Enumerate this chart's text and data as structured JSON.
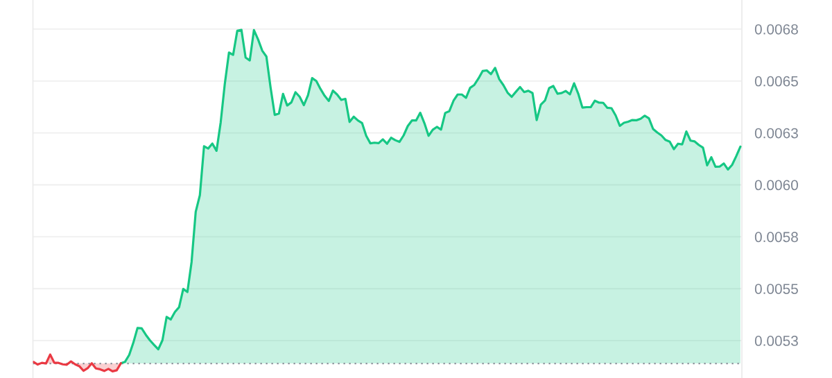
{
  "chart_data": {
    "type": "line",
    "categories": [
      null,
      null,
      null,
      null,
      null,
      null,
      null,
      null,
      null,
      null,
      null,
      null,
      null,
      null,
      null,
      null,
      null,
      null,
      null,
      null,
      null,
      null,
      null,
      null,
      null,
      null,
      null,
      null,
      null,
      null,
      null,
      null,
      null,
      null,
      null,
      null,
      null,
      null,
      null,
      null,
      null,
      null,
      null,
      null,
      null,
      null,
      null,
      null,
      null,
      null,
      null,
      null,
      null,
      null,
      null,
      null,
      null,
      null,
      null,
      null,
      null,
      null,
      null,
      null,
      null,
      null,
      null,
      null,
      null,
      null,
      null,
      null,
      null,
      null,
      null,
      null,
      null,
      null,
      null,
      null,
      null,
      null,
      null,
      null,
      null,
      null,
      null,
      null,
      null,
      null,
      null,
      null,
      null,
      null,
      null,
      null,
      null,
      null,
      null,
      null,
      null,
      null,
      null,
      null,
      null,
      null,
      null,
      null,
      null,
      null,
      null,
      null,
      null,
      null,
      null,
      null,
      null,
      null,
      null,
      null,
      null,
      null,
      null,
      null,
      null,
      null,
      null,
      null,
      null,
      null,
      null,
      null,
      null,
      null,
      null,
      null,
      null,
      null,
      null,
      null,
      null,
      null,
      null,
      null,
      null,
      null,
      null,
      null,
      null,
      null,
      null,
      null,
      null,
      null,
      null,
      null,
      null,
      null,
      null,
      null,
      null,
      null,
      null,
      null,
      null,
      null,
      null,
      null,
      null,
      null,
      null
    ],
    "series": [
      {
        "color": "#16c784",
        "values": [
          null,
          null,
          null,
          null,
          null,
          null,
          null,
          null,
          null,
          null,
          null,
          null,
          null,
          null,
          null,
          null,
          null,
          null,
          null,
          null,
          null,
          0.005141,
          0.005148,
          0.005181,
          0.00524,
          0.005311,
          0.005309,
          0.005278,
          0.005251,
          0.005229,
          0.005208,
          0.005252,
          0.005364,
          0.005352,
          0.005388,
          0.005411,
          0.005499,
          0.005484,
          0.005628,
          0.00587,
          0.00595,
          0.006186,
          0.006175,
          0.006199,
          0.006164,
          0.0063,
          0.006487,
          0.006637,
          0.006626,
          0.006742,
          0.006746,
          0.006613,
          0.006599,
          0.006745,
          0.0067,
          0.006646,
          0.006618,
          0.006469,
          0.006337,
          0.006343,
          0.006438,
          0.006382,
          0.006397,
          0.006446,
          0.006424,
          0.006384,
          0.006431,
          0.006514,
          0.0065,
          0.006462,
          0.006429,
          0.006404,
          0.006454,
          0.006435,
          0.006409,
          0.006414,
          0.006303,
          0.006328,
          0.00631,
          0.006298,
          0.006236,
          0.0062,
          0.006203,
          0.006201,
          0.006219,
          0.006198,
          0.006227,
          0.006215,
          0.006207,
          0.006238,
          0.006283,
          0.00631,
          0.00631,
          0.006347,
          0.006297,
          0.006236,
          0.006265,
          0.006279,
          0.006266,
          0.006346,
          0.006355,
          0.006405,
          0.006435,
          0.006435,
          0.006419,
          0.006467,
          0.006481,
          0.006512,
          0.006548,
          0.006551,
          0.006533,
          0.006563,
          0.006509,
          0.00648,
          0.006444,
          0.006424,
          0.006448,
          0.006471,
          0.006447,
          0.006453,
          0.006442,
          0.006312,
          0.006386,
          0.006406,
          0.006466,
          0.006476,
          0.006439,
          0.006442,
          0.006452,
          0.006436,
          0.006489,
          0.006439,
          0.006372,
          0.006374,
          0.006374,
          0.006405,
          0.006396,
          0.006395,
          0.006371,
          0.006369,
          0.006334,
          0.006284,
          0.006299,
          0.006304,
          0.006312,
          0.006311,
          0.006318,
          0.006333,
          0.00632,
          0.006269,
          0.006252,
          0.006238,
          0.006216,
          0.006208,
          0.006172,
          0.006198,
          0.006195,
          0.006257,
          0.006213,
          0.006209,
          0.006192,
          0.006179,
          0.006094,
          0.006133,
          0.006087,
          0.006088,
          0.006103,
          0.006074,
          0.006096,
          0.006138,
          0.006184
        ],
        "lower": [
          0.00514,
          0.00514,
          0.00514,
          0.00514,
          0.00514,
          0.00514,
          0.00514,
          0.00514,
          0.00514,
          0.00514,
          0.00514,
          0.00514,
          0.00514,
          0.00514,
          0.00514,
          0.00514,
          0.00514,
          0.00514,
          0.00514,
          0.00514,
          0.00514,
          0.00514,
          0.00514,
          0.00514,
          0.00514,
          0.00514,
          0.00514,
          0.00514,
          0.00514,
          0.00514,
          0.00514,
          0.00514,
          0.00514,
          0.00514,
          0.00514,
          0.00514,
          0.00514,
          0.00514,
          0.00514,
          0.00514,
          0.00514,
          0.00514,
          0.00514,
          0.00514,
          0.00514,
          0.00514,
          0.00514,
          0.00514,
          0.00514,
          0.00514,
          0.00514,
          0.00514,
          0.00514,
          0.00514,
          0.00514,
          0.00514,
          0.00514,
          0.00514,
          0.00514,
          0.00514,
          0.00514,
          0.00514,
          0.00514,
          0.00514,
          0.00514,
          0.00514,
          0.00514,
          0.00514,
          0.00514,
          0.00514,
          0.00514,
          0.00514,
          0.00514,
          0.00514,
          0.00514,
          0.00514,
          0.00514,
          0.00514,
          0.00514,
          0.00514,
          0.00514,
          0.00514,
          0.00514,
          0.00514,
          0.00514,
          0.00514,
          0.00514,
          0.00514,
          0.00514,
          0.00514,
          0.00514,
          0.00514,
          0.00514,
          0.00514,
          0.00514,
          0.00514,
          0.00514,
          0.00514,
          0.00514,
          0.00514,
          0.00514,
          0.00514,
          0.00514,
          0.00514,
          0.00514,
          0.00514,
          0.00514,
          0.00514,
          0.00514,
          0.00514,
          0.00514,
          0.00514,
          0.00514,
          0.00514,
          0.00514,
          0.00514,
          0.00514,
          0.00514,
          0.00514,
          0.00514,
          0.00514,
          0.00514,
          0.00514,
          0.00514,
          0.00514,
          0.00514,
          0.00514,
          0.00514,
          0.00514,
          0.00514,
          0.00514,
          0.00514,
          0.00514,
          0.00514,
          0.00514,
          0.00514,
          0.00514,
          0.00514,
          0.00514,
          0.00514,
          0.00514,
          0.00514,
          0.00514,
          0.00514,
          0.00514,
          0.00514,
          0.00514,
          0.00514,
          0.00514,
          0.00514,
          0.00514,
          0.00514,
          0.00514,
          0.00514,
          0.00514,
          0.00514,
          0.00514,
          0.00514,
          0.00514,
          0.00514,
          0.00514,
          0.00514,
          0.00514,
          0.00514,
          0.00514,
          0.00514,
          0.00514,
          0.00514,
          0.00514,
          0.00514,
          0.00514
        ],
        "upper": [
          0.00514,
          0.00514,
          0.00514,
          0.00514,
          0.00514,
          0.00514,
          0.00514,
          0.00514,
          0.00514,
          0.00514,
          0.00514,
          0.00514,
          0.00514,
          0.00514,
          0.00514,
          0.00514,
          0.00514,
          0.00514,
          0.00514,
          0.00514,
          0.00514,
          0.005141,
          0.005148,
          0.005181,
          0.00524,
          0.005311,
          0.005309,
          0.005278,
          0.005251,
          0.005229,
          0.005208,
          0.005252,
          0.005364,
          0.005352,
          0.005388,
          0.005411,
          0.005499,
          0.005484,
          0.005628,
          0.00587,
          0.00595,
          0.006186,
          0.006175,
          0.006199,
          0.006164,
          0.0063,
          0.006487,
          0.006637,
          0.006626,
          0.006742,
          0.006746,
          0.006613,
          0.006599,
          0.006745,
          0.0067,
          0.006646,
          0.006618,
          0.006469,
          0.006337,
          0.006343,
          0.006438,
          0.006382,
          0.006397,
          0.006446,
          0.006424,
          0.006384,
          0.006431,
          0.006514,
          0.0065,
          0.006462,
          0.006429,
          0.006404,
          0.006454,
          0.006435,
          0.006409,
          0.006414,
          0.006303,
          0.006328,
          0.00631,
          0.006298,
          0.006236,
          0.0062,
          0.006203,
          0.006201,
          0.006219,
          0.006198,
          0.006227,
          0.006215,
          0.006207,
          0.006238,
          0.006283,
          0.00631,
          0.00631,
          0.006347,
          0.006297,
          0.006236,
          0.006265,
          0.006279,
          0.006266,
          0.006346,
          0.006355,
          0.006405,
          0.006435,
          0.006435,
          0.006419,
          0.006467,
          0.006481,
          0.006512,
          0.006548,
          0.006551,
          0.006533,
          0.006563,
          0.006509,
          0.00648,
          0.006444,
          0.006424,
          0.006448,
          0.006471,
          0.006447,
          0.006453,
          0.006442,
          0.006312,
          0.006386,
          0.006406,
          0.006466,
          0.006476,
          0.006439,
          0.006442,
          0.006452,
          0.006436,
          0.006489,
          0.006439,
          0.006372,
          0.006374,
          0.006374,
          0.006405,
          0.006396,
          0.006395,
          0.006371,
          0.006369,
          0.006334,
          0.006284,
          0.006299,
          0.006304,
          0.006312,
          0.006311,
          0.006318,
          0.006333,
          0.00632,
          0.006269,
          0.006252,
          0.006238,
          0.006216,
          0.006208,
          0.006172,
          0.006198,
          0.006195,
          0.006257,
          0.006213,
          0.006209,
          0.006192,
          0.006179,
          0.006094,
          0.006133,
          0.006087,
          0.006088,
          0.006103,
          0.006074,
          0.006096,
          0.006138,
          0.006184
        ]
      },
      {
        "color": "#ea3943",
        "values": [
          0.005147,
          0.005135,
          0.005143,
          0.00514,
          0.005183,
          0.005143,
          0.005143,
          0.005136,
          0.005134,
          0.00515,
          0.005136,
          0.005127,
          0.005105,
          0.005117,
          0.005141,
          0.005116,
          0.005112,
          0.005104,
          0.005114,
          0.005102,
          0.005107,
          0.005141,
          null,
          null,
          null,
          null,
          null,
          null,
          null,
          null,
          null,
          null,
          null,
          null,
          null,
          null,
          null,
          null,
          null,
          null,
          null,
          null,
          null,
          null,
          null,
          null,
          null,
          null,
          null,
          null,
          null,
          null,
          null,
          null,
          null,
          null,
          null,
          null,
          null,
          null,
          null,
          null,
          null,
          null,
          null,
          null,
          null,
          null,
          null,
          null,
          null,
          null,
          null,
          null,
          null,
          null,
          null,
          null,
          null,
          null,
          null,
          null,
          null,
          null,
          null,
          null,
          null,
          null,
          null,
          null,
          null,
          null,
          null,
          null,
          null,
          null,
          null,
          null,
          null,
          null,
          null,
          null,
          null,
          null,
          null,
          null,
          null,
          null,
          null,
          null,
          null,
          null,
          null,
          null,
          null,
          null,
          null,
          null,
          null,
          null,
          null,
          null,
          null,
          null,
          null,
          null,
          null,
          null,
          null,
          null,
          null,
          null,
          null,
          null,
          null,
          null,
          null,
          null,
          null,
          null,
          null,
          null,
          null,
          null,
          null,
          null,
          null,
          null,
          null,
          null,
          null,
          null,
          null,
          null,
          null,
          null,
          null,
          null,
          null,
          null,
          null,
          null,
          null,
          null,
          null,
          null,
          null,
          null,
          null,
          null,
          null
        ],
        "lower": [
          0.00514,
          0.005135,
          0.00514,
          0.00514,
          0.00514,
          0.00514,
          0.00514,
          0.005136,
          0.005134,
          0.00514,
          0.005136,
          0.005127,
          0.005105,
          0.005117,
          0.00514,
          0.005116,
          0.005112,
          0.005104,
          0.005114,
          0.005102,
          0.005107,
          0.00514,
          null,
          null,
          null,
          null,
          null,
          null,
          null,
          null,
          null,
          null,
          null,
          null,
          null,
          null,
          null,
          null,
          null,
          null,
          null,
          null,
          null,
          null,
          null,
          null,
          null,
          null,
          null,
          null,
          null,
          null,
          null,
          null,
          null,
          null,
          null,
          null,
          null,
          null,
          null,
          null,
          null,
          null,
          null,
          null,
          null,
          null,
          null,
          null,
          null,
          null,
          null,
          null,
          null,
          null,
          null,
          null,
          null,
          null,
          null,
          null,
          null,
          null,
          null,
          null,
          null,
          null,
          null,
          null,
          null,
          null,
          null,
          null,
          null,
          null,
          null,
          null,
          null,
          null,
          null,
          null,
          null,
          null,
          null,
          null,
          null,
          null,
          null,
          null,
          null,
          null,
          null,
          null,
          null,
          null,
          null,
          null,
          null,
          null,
          null,
          null,
          null,
          null,
          null,
          null,
          null,
          null,
          null,
          null,
          null,
          null,
          null,
          null,
          null,
          null,
          null,
          null,
          null,
          null,
          null,
          null,
          null,
          null,
          null,
          null,
          null,
          null,
          null,
          null,
          null,
          null,
          null,
          null,
          null,
          null,
          null,
          null,
          null,
          null,
          null,
          null,
          null,
          null,
          null,
          null,
          null,
          null,
          null,
          null,
          null
        ],
        "upper": [
          0.005147,
          0.00514,
          0.005143,
          0.00514,
          0.005183,
          0.005143,
          0.005143,
          0.00514,
          0.00514,
          0.00515,
          0.00514,
          0.00514,
          0.00514,
          0.00514,
          0.005141,
          0.00514,
          0.00514,
          0.00514,
          0.00514,
          0.00514,
          0.00514,
          0.005141,
          null,
          null,
          null,
          null,
          null,
          null,
          null,
          null,
          null,
          null,
          null,
          null,
          null,
          null,
          null,
          null,
          null,
          null,
          null,
          null,
          null,
          null,
          null,
          null,
          null,
          null,
          null,
          null,
          null,
          null,
          null,
          null,
          null,
          null,
          null,
          null,
          null,
          null,
          null,
          null,
          null,
          null,
          null,
          null,
          null,
          null,
          null,
          null,
          null,
          null,
          null,
          null,
          null,
          null,
          null,
          null,
          null,
          null,
          null,
          null,
          null,
          null,
          null,
          null,
          null,
          null,
          null,
          null,
          null,
          null,
          null,
          null,
          null,
          null,
          null,
          null,
          null,
          null,
          null,
          null,
          null,
          null,
          null,
          null,
          null,
          null,
          null,
          null,
          null,
          null,
          null,
          null,
          null,
          null,
          null,
          null,
          null,
          null,
          null,
          null,
          null,
          null,
          null,
          null,
          null,
          null,
          null,
          null,
          null,
          null,
          null,
          null,
          null,
          null,
          null,
          null,
          null,
          null,
          null,
          null,
          null,
          null,
          null,
          null,
          null,
          null,
          null,
          null,
          null,
          null,
          null,
          null,
          null,
          null,
          null,
          null,
          null,
          null,
          null,
          null,
          null,
          null,
          null,
          null,
          null,
          null,
          null,
          null,
          null
        ]
      }
    ],
    "ylim": [
      0.00507,
      0.00689
    ],
    "yticks": [
      {
        "value": 0.00525,
        "label": "0.0053"
      },
      0.0055,
      {
        "value": 0.00575,
        "label": "0.0058"
      },
      {
        "value": 0.006,
        "label": "0.0060"
      },
      {
        "value": 0.00625,
        "label": "0.0063"
      },
      0.0065,
      {
        "value": 0.00675,
        "label": "0.0068"
      }
    ],
    "grid": "y",
    "tick_labels": "y",
    "ref_lines": [
      {
        "axis": "y",
        "value": 0.00514,
        "color": "#8a8f99",
        "line_style": "dotted"
      }
    ]
  }
}
